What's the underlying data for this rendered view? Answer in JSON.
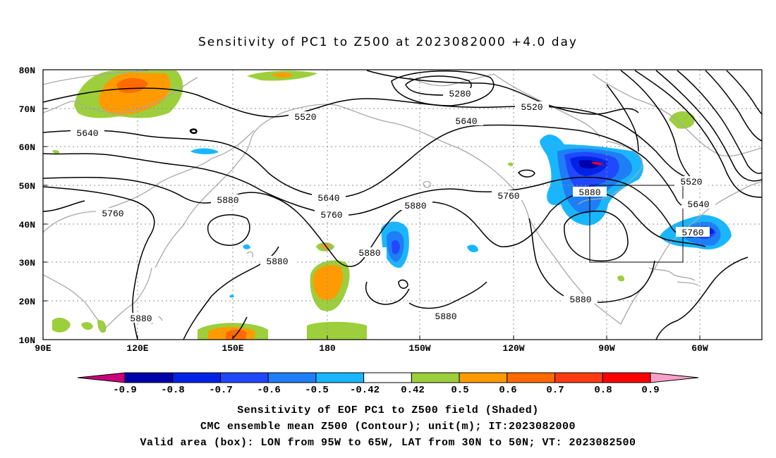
{
  "title": "Sensitivity of PC1 to Z500 at 2023082000 +4.0 day",
  "lat_labels": [
    "80N",
    "70N",
    "60N",
    "50N",
    "40N",
    "30N",
    "20N",
    "10N"
  ],
  "lon_labels": [
    "90E",
    "120E",
    "150E",
    "180",
    "150W",
    "120W",
    "90W",
    "60W"
  ],
  "contour_labels": [
    "5280",
    "5520",
    "5520",
    "5520",
    "5640",
    "5640",
    "5640",
    "5640",
    "5760",
    "5760",
    "5760",
    "5760",
    "5880",
    "5880",
    "5880",
    "5880",
    "5880",
    "5880",
    "5880",
    "5880"
  ],
  "colorbar": {
    "labels": [
      "-0.9",
      "-0.8",
      "-0.7",
      "-0.6",
      "-0.5",
      "-0.42",
      "0.42",
      "0.5",
      "0.6",
      "0.7",
      "0.8",
      "0.9"
    ],
    "colors": {
      "low_tip": "#c8007a",
      "bins": [
        "#0000aa",
        "#0022e6",
        "#1f48ff",
        "#1e7ef5",
        "#19b6ff",
        "#ffffff",
        "#9ccf3b",
        "#ff9b00",
        "#ff6a00",
        "#ff3a10",
        "#ff0000"
      ],
      "high_tip": "#f7a0c8"
    }
  },
  "captions": {
    "line1": "Sensitivity of EOF PC1 to Z500 field (Shaded)",
    "line2": "CMC ensemble mean Z500 (Contour); unit(m); IT:2023082000",
    "line3": "Valid area (box): LON from 95W to 65W, LAT from 30N to 50N; VT: 2023082500"
  },
  "valid_area": {
    "lon_min": "95W",
    "lon_max": "65W",
    "lat_min": "30N",
    "lat_max": "50N"
  },
  "map_colors": {
    "coast": "#a8a8a8",
    "contour": "#000000",
    "grid": "#909090"
  }
}
